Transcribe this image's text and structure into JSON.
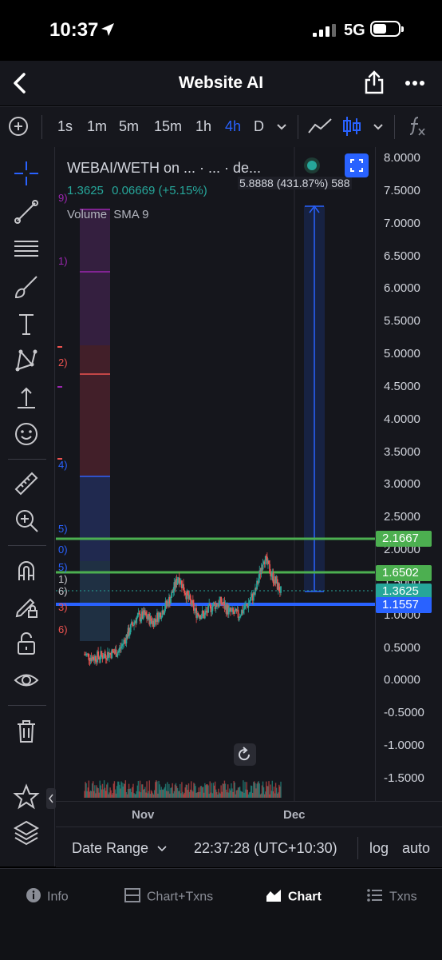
{
  "status_bar": {
    "time": "10:37",
    "network": "5G"
  },
  "nav": {
    "title": "Website AI"
  },
  "toolbar": {
    "timeframes": [
      "1s",
      "1m",
      "5m",
      "15m",
      "1h",
      "4h",
      "D"
    ],
    "active_timeframe": "4h"
  },
  "chart": {
    "legend_title": "WEBAI/WETH on ...  · ...  · de...",
    "legend_price": "1.3625",
    "legend_change": "0.06669 (+5.15%)",
    "legend_volume": "Volume",
    "legend_sma": "SMA 9",
    "measure_label": "5.8888 (431.87%) 588",
    "fib_labels": [
      "9)",
      "1)",
      "2)",
      "4)",
      "5)",
      "0)",
      "5)",
      "1)",
      "6)",
      "3)",
      "6)"
    ],
    "colors": {
      "up": "#26a69a",
      "down": "#ef5350",
      "accent": "#2962ff",
      "green_line": "#4caf50",
      "blue_line": "#2962ff"
    }
  },
  "chart_data": {
    "type": "line",
    "title": "WEBAI/WETH",
    "y_ticks": [
      "8.0000",
      "7.5000",
      "7.0000",
      "6.5000",
      "6.0000",
      "5.5000",
      "5.0000",
      "4.5000",
      "4.0000",
      "3.5000",
      "3.0000",
      "2.5000",
      "2.0000",
      "1.5000",
      "1.0000",
      "0.5000",
      "0.0000",
      "-0.5000",
      "-1.0000",
      "-1.5000"
    ],
    "ylim": [
      -1.5,
      8.0
    ],
    "x_ticks": [
      "Nov",
      "Dec"
    ],
    "price_tags": [
      {
        "value": "2.1667",
        "color": "#4caf50"
      },
      {
        "value": "1.6502",
        "color": "#4caf50"
      },
      {
        "value": "1.3625",
        "color": "#26a69a"
      },
      {
        "value": "1.1557",
        "color": "#2962ff"
      }
    ],
    "series": [
      {
        "name": "WEBAI/WETH",
        "values": [
          0.4,
          0.35,
          0.38,
          0.42,
          0.45,
          0.7,
          0.95,
          1.0,
          0.9,
          1.05,
          1.25,
          1.6,
          1.3,
          1.05,
          1.0,
          1.15,
          1.2,
          1.05,
          1.0,
          1.15,
          1.35,
          1.9,
          1.6,
          1.36
        ]
      }
    ]
  },
  "bottom_bar": {
    "date_range": "Date Range",
    "time": "22:37:28 (UTC+10:30)",
    "log": "log",
    "auto": "auto"
  },
  "tabs": [
    {
      "label": "Info",
      "active": false
    },
    {
      "label": "Chart+Txns",
      "active": false
    },
    {
      "label": "Chart",
      "active": true
    },
    {
      "label": "Txns",
      "active": false
    }
  ]
}
